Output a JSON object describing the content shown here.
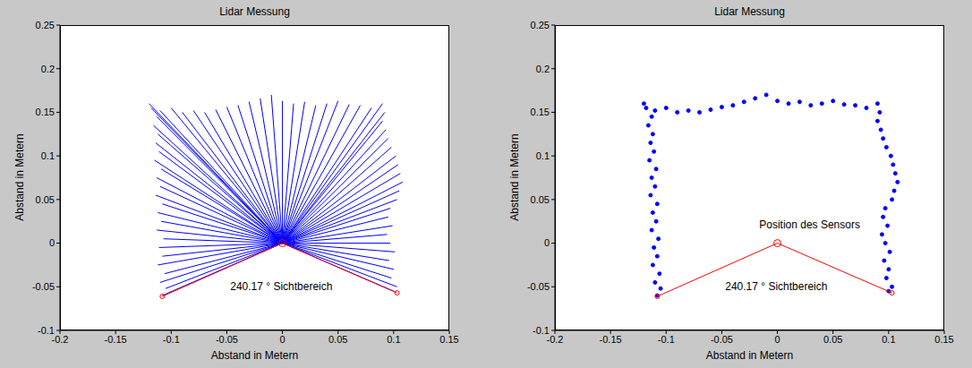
{
  "chart_data": [
    {
      "type": "rays",
      "title": "Lidar Messung",
      "xlabel": "Abstand in Metern",
      "ylabel": "Abstand in Metern",
      "x": [
        -0.108,
        -0.105,
        -0.11,
        -0.106,
        -0.112,
        -0.108,
        -0.111,
        -0.107,
        -0.113,
        -0.109,
        -0.112,
        -0.108,
        -0.114,
        -0.11,
        -0.113,
        -0.109,
        -0.115,
        -0.111,
        -0.114,
        -0.112,
        -0.116,
        -0.113,
        -0.118,
        -0.12,
        -0.11,
        -0.1,
        -0.09,
        -0.08,
        -0.07,
        -0.06,
        -0.05,
        -0.04,
        -0.03,
        -0.02,
        -0.01,
        0.0,
        0.01,
        0.02,
        0.03,
        0.04,
        0.05,
        0.06,
        0.07,
        0.08,
        0.09,
        0.092,
        0.09,
        0.093,
        0.095,
        0.098,
        0.102,
        0.104,
        0.106,
        0.108,
        0.105,
        0.103,
        0.097,
        0.095,
        0.099,
        0.094,
        0.097,
        0.101,
        0.096,
        0.1,
        0.098,
        0.103,
        0.1
      ],
      "values": [
        -0.06,
        -0.052,
        -0.045,
        -0.035,
        -0.025,
        -0.015,
        -0.005,
        0.005,
        0.015,
        0.025,
        0.035,
        0.045,
        0.055,
        0.065,
        0.075,
        0.085,
        0.095,
        0.105,
        0.115,
        0.125,
        0.135,
        0.145,
        0.155,
        0.16,
        0.152,
        0.155,
        0.15,
        0.152,
        0.15,
        0.153,
        0.156,
        0.158,
        0.162,
        0.166,
        0.17,
        0.163,
        0.16,
        0.162,
        0.158,
        0.16,
        0.163,
        0.159,
        0.158,
        0.155,
        0.16,
        0.15,
        0.14,
        0.13,
        0.12,
        0.11,
        0.1,
        0.09,
        0.08,
        0.07,
        0.06,
        0.05,
        0.04,
        0.03,
        0.02,
        0.01,
        0.0,
        -0.01,
        -0.02,
        -0.03,
        -0.04,
        -0.05,
        -0.055
      ],
      "color": "#0000ff",
      "sensor": {
        "x": 0,
        "y": 0,
        "color": "#ff0000"
      },
      "field_of_view": [
        [
          -0.108,
          -0.061
        ],
        [
          0.103,
          -0.057
        ]
      ],
      "annotations": [
        {
          "text": "240.17 ° Sichtbereich",
          "x": -0.001,
          "y": -0.051
        }
      ],
      "xlim": [
        -0.2,
        0.15
      ],
      "ylim": [
        -0.1,
        0.25
      ],
      "xticks": [
        -0.2,
        -0.15,
        -0.1,
        -0.05,
        0,
        0.05,
        0.1,
        0.15
      ],
      "yticks": [
        -0.1,
        -0.05,
        0,
        0.05,
        0.1,
        0.15,
        0.2,
        0.25
      ],
      "grid": false
    },
    {
      "type": "scatter",
      "title": "Lidar Messung",
      "xlabel": "Abstand in Metern",
      "ylabel": "Abstand in Metern",
      "x": [
        -0.108,
        -0.105,
        -0.11,
        -0.106,
        -0.112,
        -0.108,
        -0.111,
        -0.107,
        -0.113,
        -0.109,
        -0.112,
        -0.108,
        -0.114,
        -0.11,
        -0.113,
        -0.109,
        -0.115,
        -0.111,
        -0.114,
        -0.112,
        -0.116,
        -0.113,
        -0.118,
        -0.12,
        -0.11,
        -0.1,
        -0.09,
        -0.08,
        -0.07,
        -0.06,
        -0.05,
        -0.04,
        -0.03,
        -0.02,
        -0.01,
        0.0,
        0.01,
        0.02,
        0.03,
        0.04,
        0.05,
        0.06,
        0.07,
        0.08,
        0.09,
        0.092,
        0.09,
        0.093,
        0.095,
        0.098,
        0.102,
        0.104,
        0.106,
        0.108,
        0.105,
        0.103,
        0.097,
        0.095,
        0.099,
        0.094,
        0.097,
        0.101,
        0.096,
        0.1,
        0.098,
        0.103,
        0.1
      ],
      "values": [
        -0.06,
        -0.052,
        -0.045,
        -0.035,
        -0.025,
        -0.015,
        -0.005,
        0.005,
        0.015,
        0.025,
        0.035,
        0.045,
        0.055,
        0.065,
        0.075,
        0.085,
        0.095,
        0.105,
        0.115,
        0.125,
        0.135,
        0.145,
        0.155,
        0.16,
        0.152,
        0.155,
        0.15,
        0.152,
        0.15,
        0.153,
        0.156,
        0.158,
        0.162,
        0.166,
        0.17,
        0.163,
        0.16,
        0.162,
        0.158,
        0.16,
        0.163,
        0.159,
        0.158,
        0.155,
        0.16,
        0.15,
        0.14,
        0.13,
        0.12,
        0.11,
        0.1,
        0.09,
        0.08,
        0.07,
        0.06,
        0.05,
        0.04,
        0.03,
        0.02,
        0.01,
        0.0,
        -0.01,
        -0.02,
        -0.03,
        -0.04,
        -0.05,
        -0.055
      ],
      "color": "#0000ff",
      "marker": "dot",
      "sensor": {
        "x": 0,
        "y": 0,
        "color": "#ff0000"
      },
      "field_of_view": [
        [
          -0.108,
          -0.061
        ],
        [
          0.103,
          -0.057
        ]
      ],
      "annotations": [
        {
          "text": "Position des Sensors",
          "x": 0.029,
          "y": 0.02
        },
        {
          "text": "240.17 ° Sichtbereich",
          "x": -0.001,
          "y": -0.051
        }
      ],
      "xlim": [
        -0.2,
        0.15
      ],
      "ylim": [
        -0.1,
        0.25
      ],
      "xticks": [
        -0.2,
        -0.15,
        -0.1,
        -0.05,
        0,
        0.05,
        0.1,
        0.15
      ],
      "yticks": [
        -0.1,
        -0.05,
        0,
        0.05,
        0.1,
        0.15,
        0.2,
        0.25
      ],
      "grid": false
    }
  ]
}
